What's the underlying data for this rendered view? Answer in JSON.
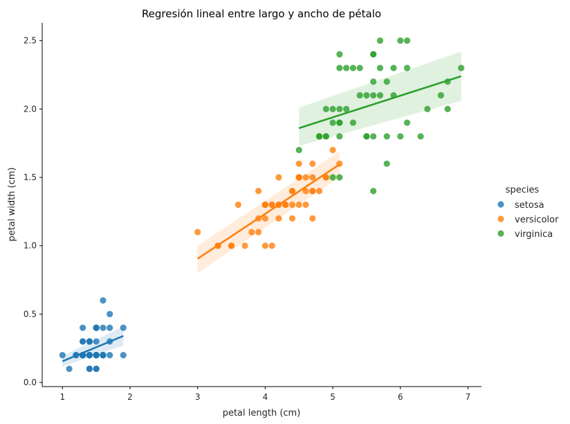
{
  "chart_data": {
    "type": "scatter",
    "title": "Regresión lineal entre largo y ancho de pétalo",
    "xlabel": "petal length (cm)",
    "ylabel": "petal width (cm)",
    "xlim": [
      0.7,
      7.2
    ],
    "ylim": [
      -0.03,
      2.63
    ],
    "xticks": [
      "1",
      "2",
      "3",
      "4",
      "5",
      "6",
      "7"
    ],
    "yticks": [
      "0.0",
      "0.5",
      "1.0",
      "1.5",
      "2.0",
      "2.5"
    ],
    "grid": false,
    "legend": {
      "title": "species",
      "placement": "right"
    },
    "series": [
      {
        "name": "setosa",
        "color": "#1f77b4",
        "points": [
          [
            1.4,
            0.2
          ],
          [
            1.4,
            0.2
          ],
          [
            1.3,
            0.2
          ],
          [
            1.5,
            0.2
          ],
          [
            1.4,
            0.2
          ],
          [
            1.7,
            0.4
          ],
          [
            1.4,
            0.3
          ],
          [
            1.5,
            0.2
          ],
          [
            1.4,
            0.2
          ],
          [
            1.5,
            0.1
          ],
          [
            1.5,
            0.2
          ],
          [
            1.6,
            0.2
          ],
          [
            1.4,
            0.1
          ],
          [
            1.1,
            0.1
          ],
          [
            1.2,
            0.2
          ],
          [
            1.5,
            0.4
          ],
          [
            1.3,
            0.4
          ],
          [
            1.4,
            0.3
          ],
          [
            1.7,
            0.3
          ],
          [
            1.5,
            0.3
          ],
          [
            1.7,
            0.2
          ],
          [
            1.5,
            0.4
          ],
          [
            1.0,
            0.2
          ],
          [
            1.7,
            0.5
          ],
          [
            1.9,
            0.2
          ],
          [
            1.6,
            0.2
          ],
          [
            1.6,
            0.4
          ],
          [
            1.5,
            0.2
          ],
          [
            1.4,
            0.2
          ],
          [
            1.6,
            0.2
          ],
          [
            1.6,
            0.2
          ],
          [
            1.5,
            0.4
          ],
          [
            1.5,
            0.1
          ],
          [
            1.4,
            0.2
          ],
          [
            1.5,
            0.2
          ],
          [
            1.2,
            0.2
          ],
          [
            1.3,
            0.2
          ],
          [
            1.4,
            0.1
          ],
          [
            1.3,
            0.2
          ],
          [
            1.5,
            0.2
          ],
          [
            1.3,
            0.3
          ],
          [
            1.3,
            0.3
          ],
          [
            1.3,
            0.2
          ],
          [
            1.6,
            0.6
          ],
          [
            1.9,
            0.4
          ],
          [
            1.4,
            0.3
          ],
          [
            1.6,
            0.2
          ],
          [
            1.4,
            0.2
          ],
          [
            1.5,
            0.2
          ],
          [
            1.4,
            0.2
          ]
        ],
        "regression": {
          "x": [
            1.0,
            1.9
          ],
          "y": [
            0.155,
            0.34
          ]
        },
        "ci_lower": [
          0.117,
          0.27
        ],
        "ci_upper": [
          0.195,
          0.41
        ]
      },
      {
        "name": "versicolor",
        "color": "#ff7f0e",
        "points": [
          [
            4.7,
            1.4
          ],
          [
            4.5,
            1.5
          ],
          [
            4.9,
            1.5
          ],
          [
            4.0,
            1.3
          ],
          [
            4.6,
            1.5
          ],
          [
            4.5,
            1.3
          ],
          [
            4.7,
            1.6
          ],
          [
            3.3,
            1.0
          ],
          [
            4.6,
            1.3
          ],
          [
            3.9,
            1.4
          ],
          [
            3.5,
            1.0
          ],
          [
            4.2,
            1.5
          ],
          [
            4.0,
            1.0
          ],
          [
            4.7,
            1.4
          ],
          [
            3.6,
            1.3
          ],
          [
            4.4,
            1.4
          ],
          [
            4.5,
            1.5
          ],
          [
            4.1,
            1.0
          ],
          [
            4.5,
            1.5
          ],
          [
            3.9,
            1.1
          ],
          [
            4.8,
            1.8
          ],
          [
            4.0,
            1.3
          ],
          [
            4.9,
            1.5
          ],
          [
            4.7,
            1.2
          ],
          [
            4.3,
            1.3
          ],
          [
            4.4,
            1.4
          ],
          [
            4.8,
            1.4
          ],
          [
            5.0,
            1.7
          ],
          [
            4.5,
            1.5
          ],
          [
            3.5,
            1.0
          ],
          [
            3.8,
            1.1
          ],
          [
            3.7,
            1.0
          ],
          [
            3.9,
            1.2
          ],
          [
            5.1,
            1.6
          ],
          [
            4.5,
            1.5
          ],
          [
            4.5,
            1.6
          ],
          [
            4.7,
            1.5
          ],
          [
            4.4,
            1.3
          ],
          [
            4.1,
            1.3
          ],
          [
            4.0,
            1.3
          ],
          [
            4.4,
            1.2
          ],
          [
            4.6,
            1.4
          ],
          [
            4.0,
            1.2
          ],
          [
            3.3,
            1.0
          ],
          [
            4.2,
            1.3
          ],
          [
            4.2,
            1.2
          ],
          [
            4.2,
            1.3
          ],
          [
            4.3,
            1.3
          ],
          [
            3.0,
            1.1
          ],
          [
            4.1,
            1.3
          ]
        ],
        "regression": {
          "x": [
            3.0,
            5.1
          ],
          "y": [
            0.905,
            1.595
          ]
        },
        "ci_lower": [
          0.8,
          1.5
        ],
        "ci_upper": [
          1.0,
          1.69
        ]
      },
      {
        "name": "virginica",
        "color": "#2ca02c",
        "points": [
          [
            6.0,
            2.5
          ],
          [
            5.1,
            1.9
          ],
          [
            5.9,
            2.1
          ],
          [
            5.6,
            1.8
          ],
          [
            5.8,
            2.2
          ],
          [
            6.6,
            2.1
          ],
          [
            4.5,
            1.7
          ],
          [
            6.3,
            1.8
          ],
          [
            5.8,
            1.8
          ],
          [
            6.1,
            2.5
          ],
          [
            5.1,
            2.0
          ],
          [
            5.3,
            1.9
          ],
          [
            5.5,
            2.1
          ],
          [
            5.0,
            2.0
          ],
          [
            5.1,
            2.4
          ],
          [
            5.3,
            2.3
          ],
          [
            5.5,
            1.8
          ],
          [
            6.7,
            2.2
          ],
          [
            6.9,
            2.3
          ],
          [
            5.0,
            1.5
          ],
          [
            5.7,
            2.3
          ],
          [
            4.9,
            2.0
          ],
          [
            6.7,
            2.0
          ],
          [
            4.9,
            1.8
          ],
          [
            5.7,
            2.1
          ],
          [
            6.0,
            1.8
          ],
          [
            4.8,
            1.8
          ],
          [
            4.9,
            1.8
          ],
          [
            5.6,
            2.1
          ],
          [
            5.8,
            1.6
          ],
          [
            6.1,
            1.9
          ],
          [
            6.4,
            2.0
          ],
          [
            5.6,
            2.2
          ],
          [
            5.1,
            1.5
          ],
          [
            5.6,
            1.4
          ],
          [
            6.1,
            2.3
          ],
          [
            5.6,
            2.4
          ],
          [
            5.5,
            1.8
          ],
          [
            4.8,
            1.8
          ],
          [
            5.4,
            2.1
          ],
          [
            5.6,
            2.4
          ],
          [
            5.1,
            2.3
          ],
          [
            5.1,
            1.9
          ],
          [
            5.9,
            2.3
          ],
          [
            5.7,
            2.5
          ],
          [
            5.2,
            2.3
          ],
          [
            5.0,
            1.9
          ],
          [
            5.2,
            2.0
          ],
          [
            5.4,
            2.3
          ],
          [
            5.1,
            1.8
          ]
        ],
        "regression": {
          "x": [
            4.5,
            6.9
          ],
          "y": [
            1.86,
            2.24
          ]
        },
        "ci_lower": [
          1.73,
          2.06
        ],
        "ci_upper": [
          2.01,
          2.42
        ]
      }
    ]
  }
}
